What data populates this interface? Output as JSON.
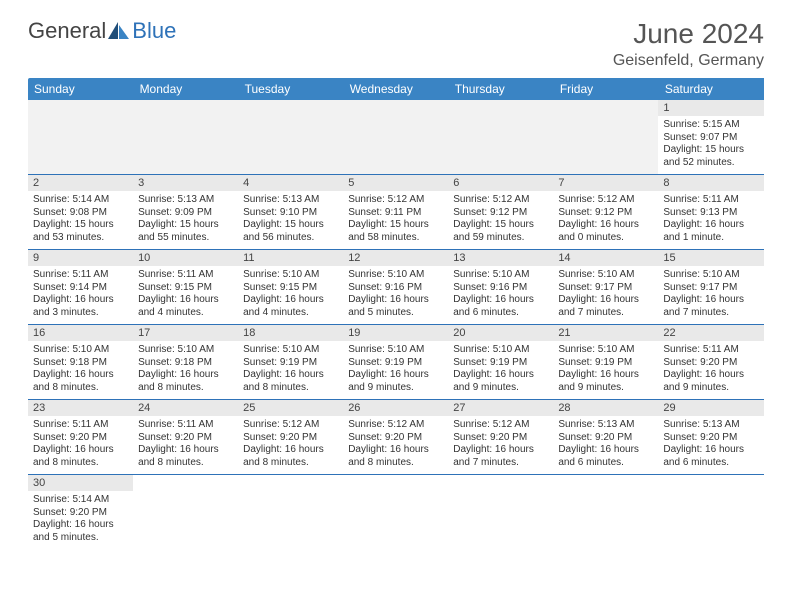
{
  "brand": {
    "general": "General",
    "blue": "Blue"
  },
  "header": {
    "title": "June 2024",
    "location": "Geisenfeld, Germany"
  },
  "colors": {
    "header_bg": "#3a84c4",
    "border": "#2e72b8",
    "daynum_bg": "#e9e9e9",
    "empty_bg": "#f2f2f2"
  },
  "weekdays": [
    "Sunday",
    "Monday",
    "Tuesday",
    "Wednesday",
    "Thursday",
    "Friday",
    "Saturday"
  ],
  "weeks": [
    [
      null,
      null,
      null,
      null,
      null,
      null,
      {
        "n": "1",
        "sr": "Sunrise: 5:15 AM",
        "ss": "Sunset: 9:07 PM",
        "dl": "Daylight: 15 hours and 52 minutes."
      }
    ],
    [
      {
        "n": "2",
        "sr": "Sunrise: 5:14 AM",
        "ss": "Sunset: 9:08 PM",
        "dl": "Daylight: 15 hours and 53 minutes."
      },
      {
        "n": "3",
        "sr": "Sunrise: 5:13 AM",
        "ss": "Sunset: 9:09 PM",
        "dl": "Daylight: 15 hours and 55 minutes."
      },
      {
        "n": "4",
        "sr": "Sunrise: 5:13 AM",
        "ss": "Sunset: 9:10 PM",
        "dl": "Daylight: 15 hours and 56 minutes."
      },
      {
        "n": "5",
        "sr": "Sunrise: 5:12 AM",
        "ss": "Sunset: 9:11 PM",
        "dl": "Daylight: 15 hours and 58 minutes."
      },
      {
        "n": "6",
        "sr": "Sunrise: 5:12 AM",
        "ss": "Sunset: 9:12 PM",
        "dl": "Daylight: 15 hours and 59 minutes."
      },
      {
        "n": "7",
        "sr": "Sunrise: 5:12 AM",
        "ss": "Sunset: 9:12 PM",
        "dl": "Daylight: 16 hours and 0 minutes."
      },
      {
        "n": "8",
        "sr": "Sunrise: 5:11 AM",
        "ss": "Sunset: 9:13 PM",
        "dl": "Daylight: 16 hours and 1 minute."
      }
    ],
    [
      {
        "n": "9",
        "sr": "Sunrise: 5:11 AM",
        "ss": "Sunset: 9:14 PM",
        "dl": "Daylight: 16 hours and 3 minutes."
      },
      {
        "n": "10",
        "sr": "Sunrise: 5:11 AM",
        "ss": "Sunset: 9:15 PM",
        "dl": "Daylight: 16 hours and 4 minutes."
      },
      {
        "n": "11",
        "sr": "Sunrise: 5:10 AM",
        "ss": "Sunset: 9:15 PM",
        "dl": "Daylight: 16 hours and 4 minutes."
      },
      {
        "n": "12",
        "sr": "Sunrise: 5:10 AM",
        "ss": "Sunset: 9:16 PM",
        "dl": "Daylight: 16 hours and 5 minutes."
      },
      {
        "n": "13",
        "sr": "Sunrise: 5:10 AM",
        "ss": "Sunset: 9:16 PM",
        "dl": "Daylight: 16 hours and 6 minutes."
      },
      {
        "n": "14",
        "sr": "Sunrise: 5:10 AM",
        "ss": "Sunset: 9:17 PM",
        "dl": "Daylight: 16 hours and 7 minutes."
      },
      {
        "n": "15",
        "sr": "Sunrise: 5:10 AM",
        "ss": "Sunset: 9:17 PM",
        "dl": "Daylight: 16 hours and 7 minutes."
      }
    ],
    [
      {
        "n": "16",
        "sr": "Sunrise: 5:10 AM",
        "ss": "Sunset: 9:18 PM",
        "dl": "Daylight: 16 hours and 8 minutes."
      },
      {
        "n": "17",
        "sr": "Sunrise: 5:10 AM",
        "ss": "Sunset: 9:18 PM",
        "dl": "Daylight: 16 hours and 8 minutes."
      },
      {
        "n": "18",
        "sr": "Sunrise: 5:10 AM",
        "ss": "Sunset: 9:19 PM",
        "dl": "Daylight: 16 hours and 8 minutes."
      },
      {
        "n": "19",
        "sr": "Sunrise: 5:10 AM",
        "ss": "Sunset: 9:19 PM",
        "dl": "Daylight: 16 hours and 9 minutes."
      },
      {
        "n": "20",
        "sr": "Sunrise: 5:10 AM",
        "ss": "Sunset: 9:19 PM",
        "dl": "Daylight: 16 hours and 9 minutes."
      },
      {
        "n": "21",
        "sr": "Sunrise: 5:10 AM",
        "ss": "Sunset: 9:19 PM",
        "dl": "Daylight: 16 hours and 9 minutes."
      },
      {
        "n": "22",
        "sr": "Sunrise: 5:11 AM",
        "ss": "Sunset: 9:20 PM",
        "dl": "Daylight: 16 hours and 9 minutes."
      }
    ],
    [
      {
        "n": "23",
        "sr": "Sunrise: 5:11 AM",
        "ss": "Sunset: 9:20 PM",
        "dl": "Daylight: 16 hours and 8 minutes."
      },
      {
        "n": "24",
        "sr": "Sunrise: 5:11 AM",
        "ss": "Sunset: 9:20 PM",
        "dl": "Daylight: 16 hours and 8 minutes."
      },
      {
        "n": "25",
        "sr": "Sunrise: 5:12 AM",
        "ss": "Sunset: 9:20 PM",
        "dl": "Daylight: 16 hours and 8 minutes."
      },
      {
        "n": "26",
        "sr": "Sunrise: 5:12 AM",
        "ss": "Sunset: 9:20 PM",
        "dl": "Daylight: 16 hours and 8 minutes."
      },
      {
        "n": "27",
        "sr": "Sunrise: 5:12 AM",
        "ss": "Sunset: 9:20 PM",
        "dl": "Daylight: 16 hours and 7 minutes."
      },
      {
        "n": "28",
        "sr": "Sunrise: 5:13 AM",
        "ss": "Sunset: 9:20 PM",
        "dl": "Daylight: 16 hours and 6 minutes."
      },
      {
        "n": "29",
        "sr": "Sunrise: 5:13 AM",
        "ss": "Sunset: 9:20 PM",
        "dl": "Daylight: 16 hours and 6 minutes."
      }
    ],
    [
      {
        "n": "30",
        "sr": "Sunrise: 5:14 AM",
        "ss": "Sunset: 9:20 PM",
        "dl": "Daylight: 16 hours and 5 minutes."
      },
      null,
      null,
      null,
      null,
      null,
      null
    ]
  ]
}
